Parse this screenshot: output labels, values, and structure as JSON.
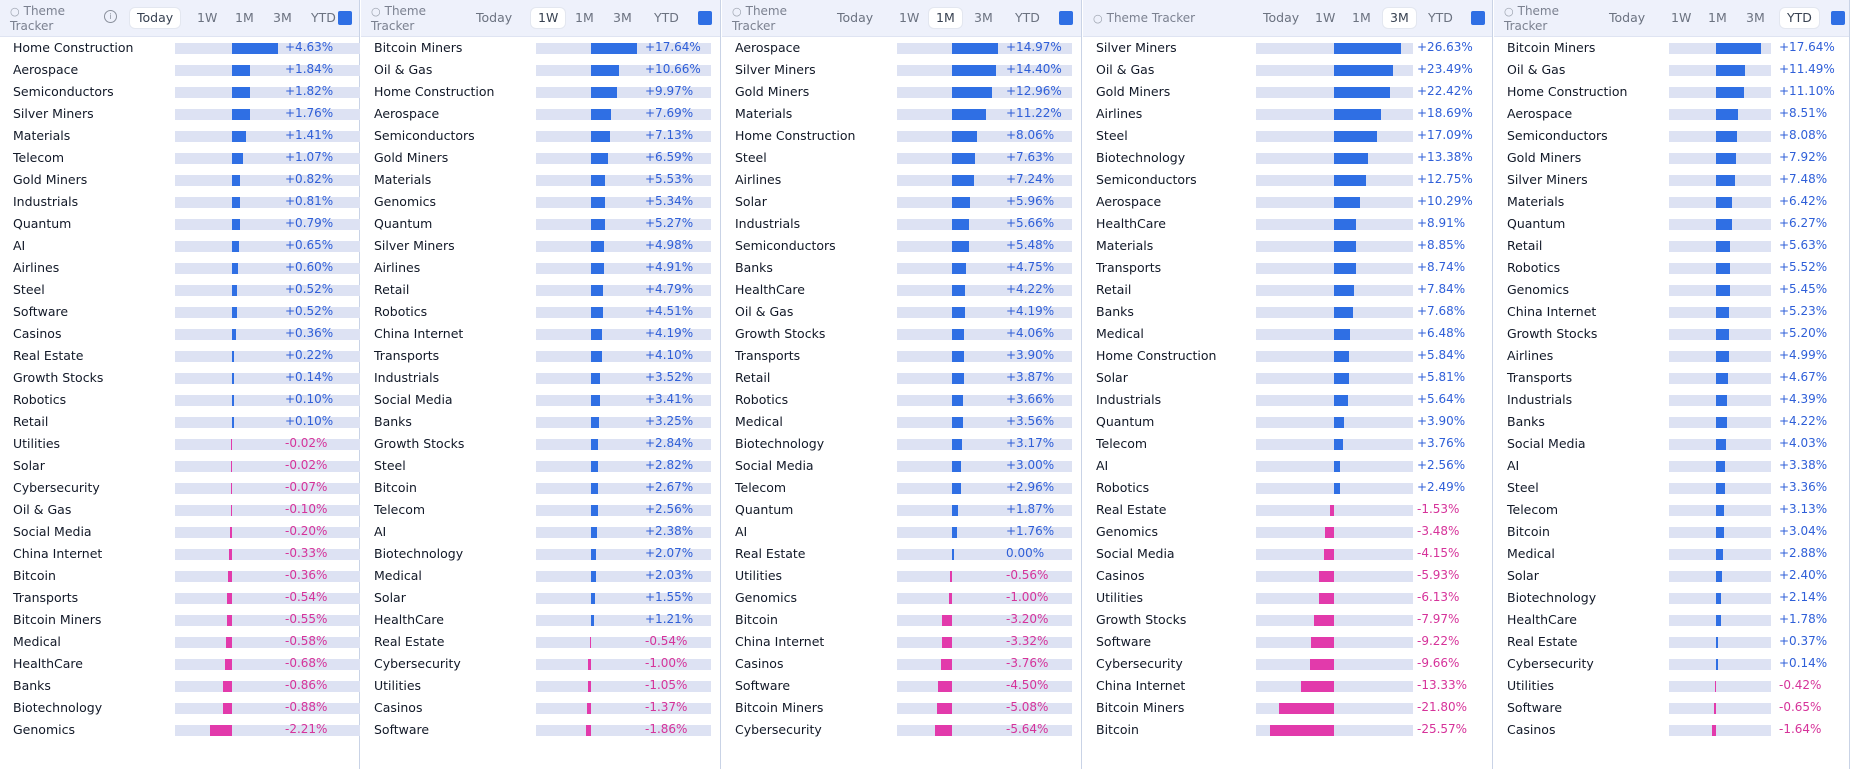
{
  "colors": {
    "positive": "#2f6fe4",
    "negative": "#e23aab",
    "header_bg": "#eef1fb",
    "track": "#dde2f3"
  },
  "tabs": [
    "Today",
    "1W",
    "1M",
    "3M",
    "YTD"
  ],
  "panels": [
    {
      "title": "Theme Tracker",
      "active": "Today",
      "rows": [
        {
          "name": "Home Construction",
          "value": "+4.63%",
          "pct": 4.63
        },
        {
          "name": "Aerospace",
          "value": "+1.84%",
          "pct": 1.84
        },
        {
          "name": "Semiconductors",
          "value": "+1.82%",
          "pct": 1.82
        },
        {
          "name": "Silver Miners",
          "value": "+1.76%",
          "pct": 1.76
        },
        {
          "name": "Materials",
          "value": "+1.41%",
          "pct": 1.41
        },
        {
          "name": "Telecom",
          "value": "+1.07%",
          "pct": 1.07
        },
        {
          "name": "Gold Miners",
          "value": "+0.82%",
          "pct": 0.82
        },
        {
          "name": "Industrials",
          "value": "+0.81%",
          "pct": 0.81
        },
        {
          "name": "Quantum",
          "value": "+0.79%",
          "pct": 0.79
        },
        {
          "name": "AI",
          "value": "+0.65%",
          "pct": 0.65
        },
        {
          "name": "Airlines",
          "value": "+0.60%",
          "pct": 0.6
        },
        {
          "name": "Steel",
          "value": "+0.52%",
          "pct": 0.52
        },
        {
          "name": "Software",
          "value": "+0.52%",
          "pct": 0.52
        },
        {
          "name": "Casinos",
          "value": "+0.36%",
          "pct": 0.36
        },
        {
          "name": "Real Estate",
          "value": "+0.22%",
          "pct": 0.22
        },
        {
          "name": "Growth Stocks",
          "value": "+0.14%",
          "pct": 0.14
        },
        {
          "name": "Robotics",
          "value": "+0.10%",
          "pct": 0.1
        },
        {
          "name": "Retail",
          "value": "+0.10%",
          "pct": 0.1
        },
        {
          "name": "Utilities",
          "value": "-0.02%",
          "pct": -0.02
        },
        {
          "name": "Solar",
          "value": "-0.02%",
          "pct": -0.02
        },
        {
          "name": "Cybersecurity",
          "value": "-0.07%",
          "pct": -0.07
        },
        {
          "name": "Oil & Gas",
          "value": "-0.10%",
          "pct": -0.1
        },
        {
          "name": "Social Media",
          "value": "-0.20%",
          "pct": -0.2
        },
        {
          "name": "China Internet",
          "value": "-0.33%",
          "pct": -0.33
        },
        {
          "name": "Bitcoin",
          "value": "-0.36%",
          "pct": -0.36
        },
        {
          "name": "Transports",
          "value": "-0.54%",
          "pct": -0.54
        },
        {
          "name": "Bitcoin Miners",
          "value": "-0.55%",
          "pct": -0.55
        },
        {
          "name": "Medical",
          "value": "-0.58%",
          "pct": -0.58
        },
        {
          "name": "HealthCare",
          "value": "-0.68%",
          "pct": -0.68
        },
        {
          "name": "Banks",
          "value": "-0.86%",
          "pct": -0.86
        },
        {
          "name": "Biotechnology",
          "value": "-0.88%",
          "pct": -0.88
        },
        {
          "name": "Genomics",
          "value": "-2.21%",
          "pct": -2.21
        }
      ]
    },
    {
      "title": "Theme Tracker",
      "active": "1W",
      "rows": [
        {
          "name": "Bitcoin Miners",
          "value": "+17.64%",
          "pct": 17.64
        },
        {
          "name": "Oil & Gas",
          "value": "+10.66%",
          "pct": 10.66
        },
        {
          "name": "Home Construction",
          "value": "+9.97%",
          "pct": 9.97
        },
        {
          "name": "Aerospace",
          "value": "+7.69%",
          "pct": 7.69
        },
        {
          "name": "Semiconductors",
          "value": "+7.13%",
          "pct": 7.13
        },
        {
          "name": "Gold Miners",
          "value": "+6.59%",
          "pct": 6.59
        },
        {
          "name": "Materials",
          "value": "+5.53%",
          "pct": 5.53
        },
        {
          "name": "Genomics",
          "value": "+5.34%",
          "pct": 5.34
        },
        {
          "name": "Quantum",
          "value": "+5.27%",
          "pct": 5.27
        },
        {
          "name": "Silver Miners",
          "value": "+4.98%",
          "pct": 4.98
        },
        {
          "name": "Airlines",
          "value": "+4.91%",
          "pct": 4.91
        },
        {
          "name": "Retail",
          "value": "+4.79%",
          "pct": 4.79
        },
        {
          "name": "Robotics",
          "value": "+4.51%",
          "pct": 4.51
        },
        {
          "name": "China Internet",
          "value": "+4.19%",
          "pct": 4.19
        },
        {
          "name": "Transports",
          "value": "+4.10%",
          "pct": 4.1
        },
        {
          "name": "Industrials",
          "value": "+3.52%",
          "pct": 3.52
        },
        {
          "name": "Social Media",
          "value": "+3.41%",
          "pct": 3.41
        },
        {
          "name": "Banks",
          "value": "+3.25%",
          "pct": 3.25
        },
        {
          "name": "Growth Stocks",
          "value": "+2.84%",
          "pct": 2.84
        },
        {
          "name": "Steel",
          "value": "+2.82%",
          "pct": 2.82
        },
        {
          "name": "Bitcoin",
          "value": "+2.67%",
          "pct": 2.67
        },
        {
          "name": "Telecom",
          "value": "+2.56%",
          "pct": 2.56
        },
        {
          "name": "AI",
          "value": "+2.38%",
          "pct": 2.38
        },
        {
          "name": "Biotechnology",
          "value": "+2.07%",
          "pct": 2.07
        },
        {
          "name": "Medical",
          "value": "+2.03%",
          "pct": 2.03
        },
        {
          "name": "Solar",
          "value": "+1.55%",
          "pct": 1.55
        },
        {
          "name": "HealthCare",
          "value": "+1.21%",
          "pct": 1.21
        },
        {
          "name": "Real Estate",
          "value": "-0.54%",
          "pct": -0.54
        },
        {
          "name": "Cybersecurity",
          "value": "-1.00%",
          "pct": -1.0
        },
        {
          "name": "Utilities",
          "value": "-1.05%",
          "pct": -1.05
        },
        {
          "name": "Casinos",
          "value": "-1.37%",
          "pct": -1.37
        },
        {
          "name": "Software",
          "value": "-1.86%",
          "pct": -1.86
        }
      ]
    },
    {
      "title": "Theme Tracker",
      "active": "1M",
      "rows": [
        {
          "name": "Aerospace",
          "value": "+14.97%",
          "pct": 14.97
        },
        {
          "name": "Silver Miners",
          "value": "+14.40%",
          "pct": 14.4
        },
        {
          "name": "Gold Miners",
          "value": "+12.96%",
          "pct": 12.96
        },
        {
          "name": "Materials",
          "value": "+11.22%",
          "pct": 11.22
        },
        {
          "name": "Home Construction",
          "value": "+8.06%",
          "pct": 8.06
        },
        {
          "name": "Steel",
          "value": "+7.63%",
          "pct": 7.63
        },
        {
          "name": "Airlines",
          "value": "+7.24%",
          "pct": 7.24
        },
        {
          "name": "Solar",
          "value": "+5.96%",
          "pct": 5.96
        },
        {
          "name": "Industrials",
          "value": "+5.66%",
          "pct": 5.66
        },
        {
          "name": "Semiconductors",
          "value": "+5.48%",
          "pct": 5.48
        },
        {
          "name": "Banks",
          "value": "+4.75%",
          "pct": 4.75
        },
        {
          "name": "HealthCare",
          "value": "+4.22%",
          "pct": 4.22
        },
        {
          "name": "Oil & Gas",
          "value": "+4.19%",
          "pct": 4.19
        },
        {
          "name": "Growth Stocks",
          "value": "+4.06%",
          "pct": 4.06
        },
        {
          "name": "Transports",
          "value": "+3.90%",
          "pct": 3.9
        },
        {
          "name": "Retail",
          "value": "+3.87%",
          "pct": 3.87
        },
        {
          "name": "Robotics",
          "value": "+3.66%",
          "pct": 3.66
        },
        {
          "name": "Medical",
          "value": "+3.56%",
          "pct": 3.56
        },
        {
          "name": "Biotechnology",
          "value": "+3.17%",
          "pct": 3.17
        },
        {
          "name": "Social Media",
          "value": "+3.00%",
          "pct": 3.0
        },
        {
          "name": "Telecom",
          "value": "+2.96%",
          "pct": 2.96
        },
        {
          "name": "Quantum",
          "value": "+1.87%",
          "pct": 1.87
        },
        {
          "name": "AI",
          "value": "+1.76%",
          "pct": 1.76
        },
        {
          "name": "Real Estate",
          "value": "0.00%",
          "pct": 0.0
        },
        {
          "name": "Utilities",
          "value": "-0.56%",
          "pct": -0.56
        },
        {
          "name": "Genomics",
          "value": "-1.00%",
          "pct": -1.0
        },
        {
          "name": "Bitcoin",
          "value": "-3.20%",
          "pct": -3.2
        },
        {
          "name": "China Internet",
          "value": "-3.32%",
          "pct": -3.32
        },
        {
          "name": "Casinos",
          "value": "-3.76%",
          "pct": -3.76
        },
        {
          "name": "Software",
          "value": "-4.50%",
          "pct": -4.5
        },
        {
          "name": "Bitcoin Miners",
          "value": "-5.08%",
          "pct": -5.08
        },
        {
          "name": "Cybersecurity",
          "value": "-5.64%",
          "pct": -5.64
        }
      ]
    },
    {
      "title": "Theme Tracker",
      "active": "3M",
      "rows": [
        {
          "name": "Silver Miners",
          "value": "+26.63%",
          "pct": 26.63
        },
        {
          "name": "Oil & Gas",
          "value": "+23.49%",
          "pct": 23.49
        },
        {
          "name": "Gold Miners",
          "value": "+22.42%",
          "pct": 22.42
        },
        {
          "name": "Airlines",
          "value": "+18.69%",
          "pct": 18.69
        },
        {
          "name": "Steel",
          "value": "+17.09%",
          "pct": 17.09
        },
        {
          "name": "Biotechnology",
          "value": "+13.38%",
          "pct": 13.38
        },
        {
          "name": "Semiconductors",
          "value": "+12.75%",
          "pct": 12.75
        },
        {
          "name": "Aerospace",
          "value": "+10.29%",
          "pct": 10.29
        },
        {
          "name": "HealthCare",
          "value": "+8.91%",
          "pct": 8.91
        },
        {
          "name": "Materials",
          "value": "+8.85%",
          "pct": 8.85
        },
        {
          "name": "Transports",
          "value": "+8.74%",
          "pct": 8.74
        },
        {
          "name": "Retail",
          "value": "+7.84%",
          "pct": 7.84
        },
        {
          "name": "Banks",
          "value": "+7.68%",
          "pct": 7.68
        },
        {
          "name": "Medical",
          "value": "+6.48%",
          "pct": 6.48
        },
        {
          "name": "Home Construction",
          "value": "+5.84%",
          "pct": 5.84
        },
        {
          "name": "Solar",
          "value": "+5.81%",
          "pct": 5.81
        },
        {
          "name": "Industrials",
          "value": "+5.64%",
          "pct": 5.64
        },
        {
          "name": "Quantum",
          "value": "+3.90%",
          "pct": 3.9
        },
        {
          "name": "Telecom",
          "value": "+3.76%",
          "pct": 3.76
        },
        {
          "name": "AI",
          "value": "+2.56%",
          "pct": 2.56
        },
        {
          "name": "Robotics",
          "value": "+2.49%",
          "pct": 2.49
        },
        {
          "name": "Real Estate",
          "value": "-1.53%",
          "pct": -1.53
        },
        {
          "name": "Genomics",
          "value": "-3.48%",
          "pct": -3.48
        },
        {
          "name": "Social Media",
          "value": "-4.15%",
          "pct": -4.15
        },
        {
          "name": "Casinos",
          "value": "-5.93%",
          "pct": -5.93
        },
        {
          "name": "Utilities",
          "value": "-6.13%",
          "pct": -6.13
        },
        {
          "name": "Growth Stocks",
          "value": "-7.97%",
          "pct": -7.97
        },
        {
          "name": "Software",
          "value": "-9.22%",
          "pct": -9.22
        },
        {
          "name": "Cybersecurity",
          "value": "-9.66%",
          "pct": -9.66
        },
        {
          "name": "China Internet",
          "value": "-13.33%",
          "pct": -13.33
        },
        {
          "name": "Bitcoin Miners",
          "value": "-21.80%",
          "pct": -21.8
        },
        {
          "name": "Bitcoin",
          "value": "-25.57%",
          "pct": -25.57
        }
      ]
    },
    {
      "title": "Theme Tracker",
      "active": "YTD",
      "rows": [
        {
          "name": "Bitcoin Miners",
          "value": "+17.64%",
          "pct": 17.64
        },
        {
          "name": "Oil & Gas",
          "value": "+11.49%",
          "pct": 11.49
        },
        {
          "name": "Home Construction",
          "value": "+11.10%",
          "pct": 11.1
        },
        {
          "name": "Aerospace",
          "value": "+8.51%",
          "pct": 8.51
        },
        {
          "name": "Semiconductors",
          "value": "+8.08%",
          "pct": 8.08
        },
        {
          "name": "Gold Miners",
          "value": "+7.92%",
          "pct": 7.92
        },
        {
          "name": "Silver Miners",
          "value": "+7.48%",
          "pct": 7.48
        },
        {
          "name": "Materials",
          "value": "+6.42%",
          "pct": 6.42
        },
        {
          "name": "Quantum",
          "value": "+6.27%",
          "pct": 6.27
        },
        {
          "name": "Retail",
          "value": "+5.63%",
          "pct": 5.63
        },
        {
          "name": "Robotics",
          "value": "+5.52%",
          "pct": 5.52
        },
        {
          "name": "Genomics",
          "value": "+5.45%",
          "pct": 5.45
        },
        {
          "name": "China Internet",
          "value": "+5.23%",
          "pct": 5.23
        },
        {
          "name": "Growth Stocks",
          "value": "+5.20%",
          "pct": 5.2
        },
        {
          "name": "Airlines",
          "value": "+4.99%",
          "pct": 4.99
        },
        {
          "name": "Transports",
          "value": "+4.67%",
          "pct": 4.67
        },
        {
          "name": "Industrials",
          "value": "+4.39%",
          "pct": 4.39
        },
        {
          "name": "Banks",
          "value": "+4.22%",
          "pct": 4.22
        },
        {
          "name": "Social Media",
          "value": "+4.03%",
          "pct": 4.03
        },
        {
          "name": "AI",
          "value": "+3.38%",
          "pct": 3.38
        },
        {
          "name": "Steel",
          "value": "+3.36%",
          "pct": 3.36
        },
        {
          "name": "Telecom",
          "value": "+3.13%",
          "pct": 3.13
        },
        {
          "name": "Bitcoin",
          "value": "+3.04%",
          "pct": 3.04
        },
        {
          "name": "Medical",
          "value": "+2.88%",
          "pct": 2.88
        },
        {
          "name": "Solar",
          "value": "+2.40%",
          "pct": 2.4
        },
        {
          "name": "Biotechnology",
          "value": "+2.14%",
          "pct": 2.14
        },
        {
          "name": "HealthCare",
          "value": "+1.78%",
          "pct": 1.78
        },
        {
          "name": "Real Estate",
          "value": "+0.37%",
          "pct": 0.37
        },
        {
          "name": "Cybersecurity",
          "value": "+0.14%",
          "pct": 0.14
        },
        {
          "name": "Utilities",
          "value": "-0.42%",
          "pct": -0.42
        },
        {
          "name": "Software",
          "value": "-0.65%",
          "pct": -0.65
        },
        {
          "name": "Casinos",
          "value": "-1.64%",
          "pct": -1.64
        }
      ]
    }
  ]
}
